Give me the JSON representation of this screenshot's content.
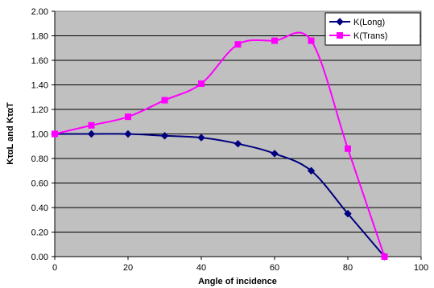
{
  "chart_data": {
    "type": "line",
    "xlabel": "Angle of incidence",
    "ylabel": "KταL and KταT",
    "xlim": [
      0,
      100
    ],
    "ylim": [
      0,
      2
    ],
    "x_ticks": [
      "0",
      "20",
      "40",
      "60",
      "80",
      "100"
    ],
    "y_ticks": [
      "0.00",
      "0.20",
      "0.40",
      "0.60",
      "0.80",
      "1.00",
      "1.20",
      "1.40",
      "1.60",
      "1.80",
      "2.00"
    ],
    "grid": "horizontal",
    "legend_position": "top-right",
    "plot_background": "#c0c0c0",
    "series": [
      {
        "name": "K(Long)",
        "color": "#000080",
        "marker": "diamond",
        "x": [
          0,
          10,
          20,
          30,
          40,
          50,
          60,
          70,
          80,
          90
        ],
        "values": [
          1.0,
          1.0,
          1.0,
          0.985,
          0.97,
          0.92,
          0.84,
          0.7,
          0.35,
          0.0
        ]
      },
      {
        "name": "K(Trans)",
        "color": "#ff00ff",
        "marker": "square",
        "x": [
          0,
          10,
          20,
          30,
          40,
          50,
          60,
          70,
          80,
          90
        ],
        "values": [
          1.0,
          1.07,
          1.14,
          1.275,
          1.41,
          1.73,
          1.76,
          1.76,
          0.88,
          0.0
        ]
      }
    ]
  }
}
